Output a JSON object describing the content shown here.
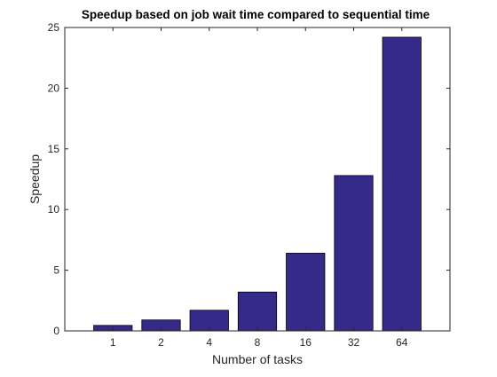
{
  "chart_data": {
    "type": "bar",
    "title": "Speedup based on job wait time compared to sequential time",
    "xlabel": "Number of tasks",
    "ylabel": "Speedup",
    "categories": [
      "1",
      "2",
      "4",
      "8",
      "16",
      "32",
      "64"
    ],
    "values": [
      0.45,
      0.9,
      1.7,
      3.2,
      6.4,
      12.8,
      24.2
    ],
    "ylim": [
      0,
      25
    ],
    "yticks": [
      "0",
      "5",
      "10",
      "15",
      "20",
      "25"
    ],
    "grid": false,
    "colors": {
      "bar_fill": "#352a87",
      "bar_edge": "#000000",
      "axis": "#262626"
    }
  }
}
